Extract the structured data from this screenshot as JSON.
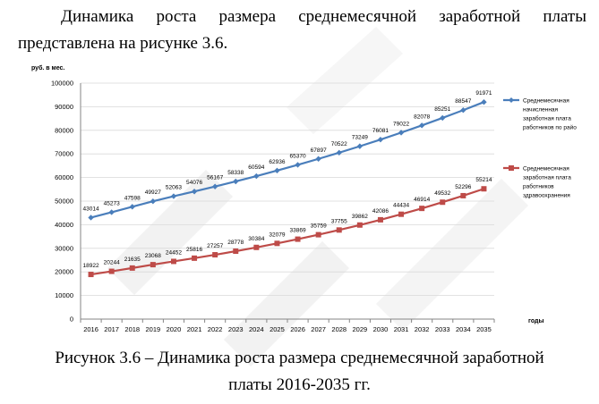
{
  "text": {
    "intro": "Динамика роста размера среднемесячной заработной платы представлена на рисунке 3.6.",
    "caption_line1": "Рисунок 3.6 – Динамика роста размера среднемесячной заработной",
    "caption_line2": "платы 2016-2035 гг."
  },
  "chart_data": {
    "type": "line",
    "title": "",
    "ylabel": "руб. в мес.",
    "xlabel": "годы",
    "ylim": [
      0,
      100000
    ],
    "yticks": [
      0,
      10000,
      20000,
      30000,
      40000,
      50000,
      60000,
      70000,
      80000,
      90000,
      100000
    ],
    "grid": true,
    "legend": "right",
    "categories": [
      "2016",
      "2017",
      "2018",
      "2019",
      "2020",
      "2021",
      "2022",
      "2023",
      "2024",
      "2025",
      "2026",
      "2027",
      "2028",
      "2029",
      "2030",
      "2031",
      "2032",
      "2033",
      "2034",
      "2035"
    ],
    "series": [
      {
        "name": "Среднемесячная начисленная заработная плата работников по райо",
        "legend_lines": [
          "Среднемесячная",
          "начисленная",
          "заработная плата",
          "работников по райо"
        ],
        "color": "#4a7ebb",
        "marker": "diamond",
        "values": [
          43014,
          45273,
          47598,
          49927,
          52063,
          54076,
          56167,
          58338,
          60594,
          62936,
          65370,
          67897,
          70522,
          73249,
          76081,
          79022,
          82078,
          85251,
          88547,
          91971
        ]
      },
      {
        "name": "Среднемесячная заработная плата работников здравоохранения",
        "legend_lines": [
          "Среднемесячная",
          "заработная плата",
          "работников",
          "здравоохранения"
        ],
        "color": "#be4b48",
        "marker": "square",
        "values": [
          18922,
          20244,
          21635,
          23068,
          24452,
          25816,
          27257,
          28778,
          30384,
          32079,
          33869,
          35759,
          37755,
          39862,
          42086,
          44434,
          46914,
          49532,
          52296,
          55214
        ]
      }
    ]
  }
}
